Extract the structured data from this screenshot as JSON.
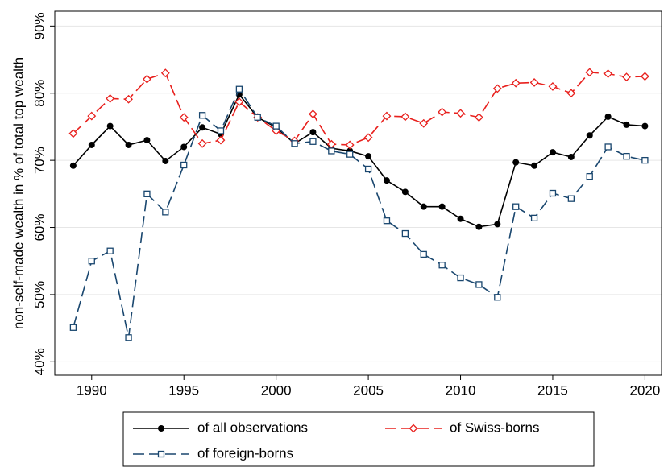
{
  "chart_data": {
    "type": "line",
    "ylabel": "non-self-made wealth in % of total top wealth",
    "x": [
      1989,
      1990,
      1991,
      1992,
      1993,
      1994,
      1995,
      1996,
      1997,
      1998,
      1999,
      2000,
      2001,
      2002,
      2003,
      2004,
      2005,
      2006,
      2007,
      2008,
      2009,
      2010,
      2011,
      2012,
      2013,
      2014,
      2015,
      2016,
      2017,
      2018,
      2019,
      2020
    ],
    "series": [
      {
        "name": "of all observations",
        "color": "#000000",
        "marker": "circle",
        "dashed": false,
        "values": [
          69.2,
          72.3,
          75.1,
          72.3,
          73.0,
          69.9,
          72.0,
          74.9,
          73.9,
          79.8,
          76.4,
          74.9,
          72.5,
          74.2,
          71.8,
          71.4,
          70.6,
          67.0,
          65.3,
          63.1,
          63.1,
          61.3,
          60.1,
          60.5,
          69.7,
          69.2,
          71.2,
          70.5,
          73.7,
          76.5,
          75.3,
          75.1
        ]
      },
      {
        "name": "of Swiss-borns",
        "color": "#e8201d",
        "marker": "diamond",
        "dashed": true,
        "values": [
          74.0,
          76.6,
          79.2,
          79.1,
          82.1,
          83.0,
          76.4,
          72.5,
          73.0,
          78.7,
          76.4,
          74.4,
          72.9,
          76.9,
          72.4,
          72.3,
          73.4,
          76.6,
          76.5,
          75.5,
          77.2,
          77.0,
          76.4,
          80.7,
          81.5,
          81.6,
          81.0,
          80.0,
          83.1,
          82.9,
          82.4,
          82.5
        ]
      },
      {
        "name": "of foreign-borns",
        "color": "#1a476f",
        "marker": "square",
        "dashed": true,
        "values": [
          45.1,
          55.0,
          56.5,
          43.6,
          65.0,
          62.3,
          69.3,
          76.7,
          74.4,
          80.6,
          76.4,
          75.1,
          72.5,
          72.8,
          71.4,
          70.9,
          68.7,
          61.0,
          59.1,
          56.0,
          54.4,
          52.5,
          51.5,
          49.6,
          63.1,
          61.4,
          65.1,
          64.3,
          67.6,
          72.0,
          70.6,
          70.0
        ]
      }
    ],
    "xlim": [
      1988,
      2020.9
    ],
    "xticks": [
      1990,
      1995,
      2000,
      2005,
      2010,
      2015,
      2020
    ],
    "ylim": [
      38,
      92.2
    ],
    "yticks": [
      {
        "value": 40,
        "label": "40%"
      },
      {
        "value": 50,
        "label": "50%"
      },
      {
        "value": 60,
        "label": "60%"
      },
      {
        "value": 70,
        "label": "70%"
      },
      {
        "value": 80,
        "label": "80%"
      },
      {
        "value": 90,
        "label": "90%"
      }
    ],
    "grid": true,
    "legend": "bottom"
  }
}
